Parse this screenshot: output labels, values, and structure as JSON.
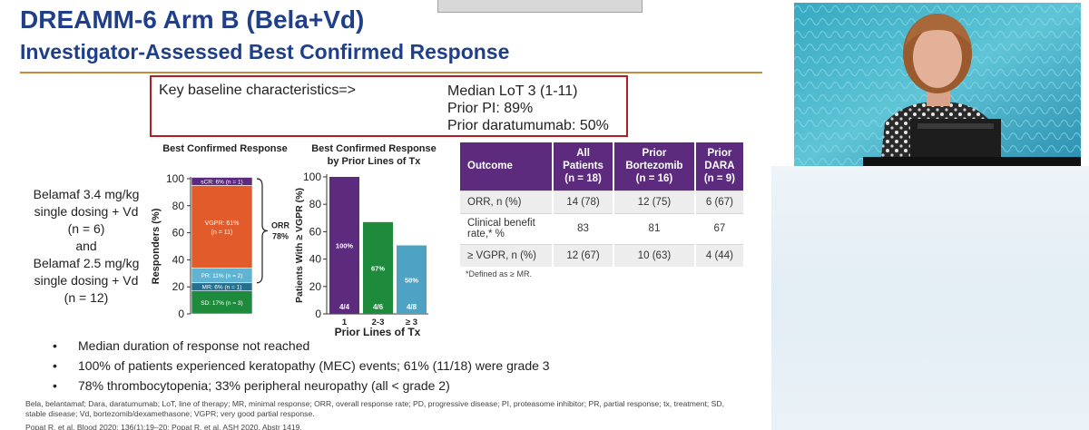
{
  "slide": {
    "title_line1": "DREAMM-6 Arm B (Bela+Vd)",
    "title_line2": "Investigator-Assessed Best Confirmed Response"
  },
  "key_box": {
    "label": "Key baseline characteristics=>",
    "lines": [
      "Median LoT 3 (1-11)",
      "Prior PI: 89%",
      "Prior daratumumab: 50%"
    ]
  },
  "dosing": {
    "lines": [
      "Belamaf 3.4 mg/kg",
      "single dosing + Vd",
      "(n = 6)",
      "and",
      "Belamaf 2.5 mg/kg",
      "single dosing + Vd",
      "(n = 12)"
    ]
  },
  "chart_data": [
    {
      "type": "bar",
      "title": "Best Confirmed Response",
      "ylabel": "Responders (%)",
      "ylim": [
        0,
        100
      ],
      "yticks": [
        "0",
        "20",
        "40",
        "60",
        "80",
        "100"
      ],
      "stacked": true,
      "segments": [
        {
          "label": "SD: 17% (n = 3)",
          "value": 17,
          "color": "#1e8a3c"
        },
        {
          "label": "MR: 6% (n = 1)",
          "value": 6,
          "color": "#26708f"
        },
        {
          "label": "PR: 11% (n = 2)",
          "value": 11,
          "color": "#5fb4d4"
        },
        {
          "label": "VGPR: 61% (n = 11)",
          "value": 61,
          "color": "#e25b2a"
        },
        {
          "label": "sCR: 6% (n = 1)",
          "value": 6,
          "color": "#5c2b7d"
        }
      ],
      "orr_lines": [
        "ORR",
        "78%"
      ]
    },
    {
      "type": "bar",
      "title_lines": [
        "Best Confirmed Response",
        "by Prior Lines of Tx"
      ],
      "ylabel": "Patients With ≥ VGPR (%)",
      "xlabel": "Prior Lines of Tx",
      "ylim": [
        0,
        100
      ],
      "yticks": [
        "0",
        "20",
        "40",
        "60",
        "80",
        "100"
      ],
      "categories": [
        "1",
        "2-3",
        "≥ 3"
      ],
      "values": [
        100,
        67,
        50
      ],
      "value_labels": [
        "100%",
        "67%",
        "50%"
      ],
      "count_labels": [
        "4/4",
        "4/6",
        "4/8"
      ],
      "colors": [
        "#5c2b7d",
        "#1e8a3c",
        "#4ea3c4"
      ]
    }
  ],
  "outcome_table": {
    "headers": [
      [
        "Outcome"
      ],
      [
        "All",
        "Patients",
        "(n = 18)"
      ],
      [
        "Prior",
        "Bortezomib",
        "(n = 16)"
      ],
      [
        "Prior",
        "DARA",
        "(n = 9)"
      ]
    ],
    "rows": [
      [
        "ORR, n (%)",
        "14 (78)",
        "12 (75)",
        "6 (67)"
      ],
      [
        "Clinical benefit rate,* %",
        "83",
        "81",
        "67"
      ],
      [
        "≥ VGPR, n (%)",
        "12 (67)",
        "10 (63)",
        "4 (44)"
      ]
    ],
    "footnote": "*Defined as ≥ MR."
  },
  "bullets": [
    "Median duration of response not reached",
    "100% of patients experienced keratopathy (MEC) events; 61% (11/18) were grade 3",
    "78% thrombocytopenia; 33% peripheral neuropathy (all < grade 2)"
  ],
  "abbreviations": "Bela, belantamaf; Dara, daratumumab; LoT, line of therapy; MR, minimal response; ORR, overall response rate; PD, progressive disease; PI, proteasome inhibitor; PR, partial response; tx, treatment; SD, stable disease; Vd, bortezomib/dexamethasone; VGPR; very good partial response.",
  "references": "Popat R, et al. Blood 2020; 136(1):19–20; Popat R, et al. ASH 2020. Abstr 1419."
}
